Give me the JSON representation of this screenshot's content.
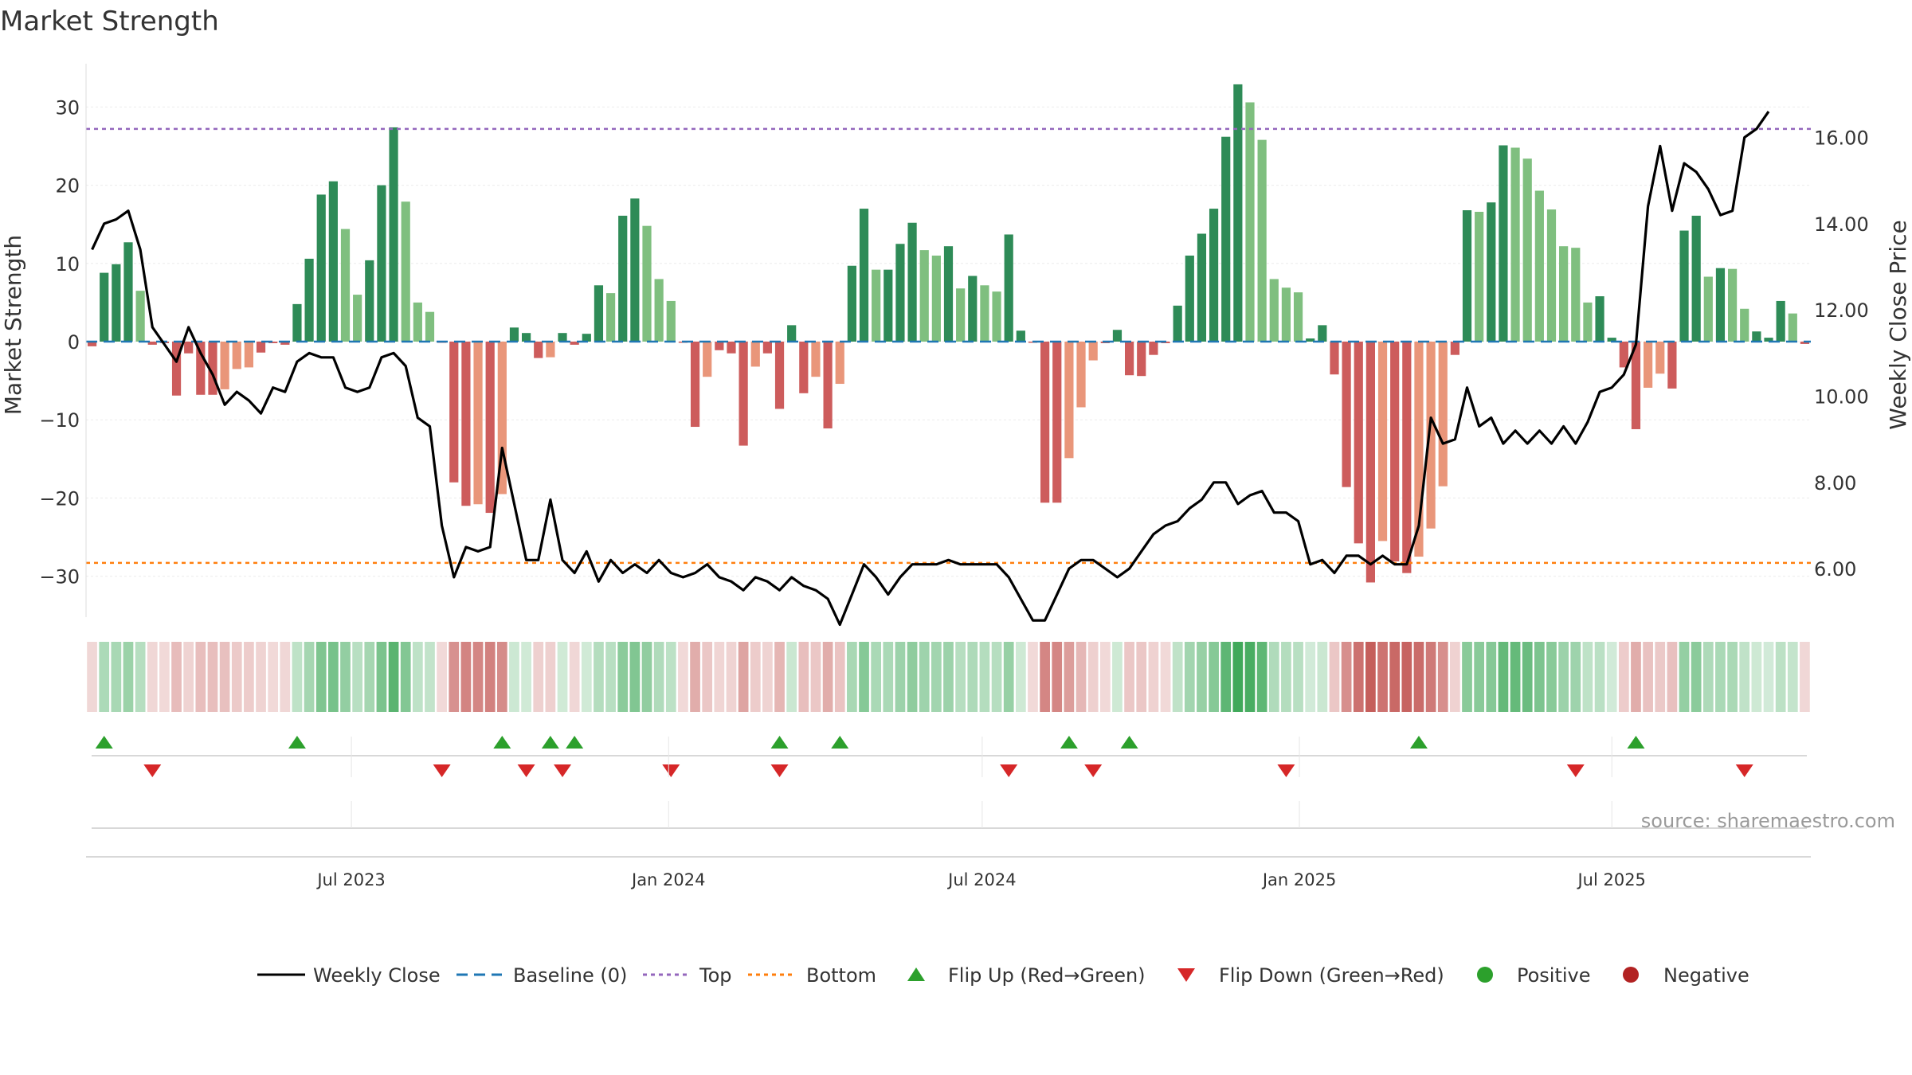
{
  "chart_data": {
    "type": "bar",
    "title": "Market Strength",
    "ylabel_left": "Market Strength",
    "ylabel_right": "Weekly Close Price",
    "left_ticks": [
      "30",
      "20",
      "10",
      "0",
      "−10",
      "−20",
      "−30"
    ],
    "right_ticks": [
      "16.00",
      "14.00",
      "12.00",
      "10.00",
      "8.00",
      "6.00"
    ],
    "ylim_left": [
      -35.5,
      35
    ],
    "ylim_right": [
      4.2,
      17.6
    ],
    "grid": true,
    "x_tick_labels": [
      "Jul 2023",
      "Jan 2024",
      "Jul 2024",
      "Jan 2025",
      "Jul 2025"
    ],
    "x_tick_indices": [
      22,
      48.3,
      74.3,
      100.6,
      126.5
    ],
    "reference_lines": {
      "top": 27.2,
      "bottom": -28.3,
      "baseline": 0
    },
    "strength": [
      -0.6,
      8.8,
      9.9,
      12.7,
      6.5,
      -0.4,
      -0.2,
      -6.9,
      -1.5,
      -6.8,
      -6.8,
      -6.1,
      -3.5,
      -3.3,
      -1.4,
      -0.2,
      -0.4,
      4.8,
      10.6,
      18.8,
      20.5,
      14.4,
      6.0,
      10.4,
      20.0,
      27.4,
      17.9,
      5.0,
      3.8,
      -0.1,
      -18.0,
      -21.0,
      -20.8,
      -21.9,
      -19.5,
      1.8,
      1.1,
      -2.1,
      -2.0,
      1.1,
      -0.4,
      1.0,
      7.2,
      6.2,
      16.1,
      18.3,
      14.8,
      8.0,
      5.2,
      -0.1,
      -10.9,
      -4.5,
      -1.1,
      -1.5,
      -13.3,
      -3.2,
      -1.5,
      -8.6,
      2.1,
      -6.6,
      -4.5,
      -11.1,
      -5.4,
      9.7,
      17.0,
      9.2,
      9.2,
      12.5,
      15.2,
      11.7,
      11.0,
      12.2,
      6.8,
      8.4,
      7.2,
      6.4,
      13.7,
      1.4,
      -0.1,
      -20.6,
      -20.6,
      -14.9,
      -8.4,
      -2.4,
      -0.2,
      1.5,
      -4.3,
      -4.4,
      -1.7,
      -0.2,
      4.6,
      11.0,
      13.8,
      17.0,
      26.2,
      32.9,
      30.6,
      25.8,
      8.0,
      6.9,
      6.3,
      0.4,
      2.1,
      -4.2,
      -18.6,
      -25.8,
      -30.8,
      -25.5,
      -28.1,
      -29.6,
      -27.5,
      -23.9,
      -18.5,
      -1.7,
      16.8,
      16.6,
      17.8,
      25.1,
      24.8,
      23.4,
      19.3,
      16.9,
      12.2,
      12.0,
      5.0,
      5.8,
      0.5,
      -3.3,
      -11.2,
      -5.9,
      -4.1,
      -6.0,
      14.2,
      16.1,
      8.3,
      9.4,
      9.3,
      4.2,
      1.3,
      0.5,
      5.2,
      3.6,
      -0.3
    ],
    "weekly_close": [
      13.4,
      14.0,
      14.1,
      14.3,
      13.4,
      11.6,
      11.2,
      10.8,
      11.6,
      11.0,
      10.5,
      9.8,
      10.1,
      9.9,
      9.6,
      10.2,
      10.1,
      10.8,
      11.0,
      10.9,
      10.9,
      10.2,
      10.1,
      10.2,
      10.9,
      11.0,
      10.7,
      9.5,
      9.3,
      7.0,
      5.8,
      6.5,
      6.4,
      6.5,
      8.8,
      7.5,
      6.2,
      6.2,
      7.6,
      6.2,
      5.9,
      6.4,
      5.7,
      6.2,
      5.9,
      6.1,
      5.9,
      6.2,
      5.9,
      5.8,
      5.9,
      6.1,
      5.8,
      5.7,
      5.5,
      5.8,
      5.7,
      5.5,
      5.8,
      5.6,
      5.5,
      5.3,
      4.7,
      5.4,
      6.1,
      5.8,
      5.4,
      5.8,
      6.1,
      6.1,
      6.1,
      6.2,
      6.1,
      6.1,
      6.1,
      6.1,
      5.8,
      5.3,
      4.8,
      4.8,
      5.4,
      6.0,
      6.2,
      6.2,
      6.0,
      5.8,
      6.0,
      6.4,
      6.8,
      7.0,
      7.1,
      7.4,
      7.6,
      8.0,
      8.0,
      7.5,
      7.7,
      7.8,
      7.3,
      7.3,
      7.1,
      6.1,
      6.2,
      5.9,
      6.3,
      6.3,
      6.1,
      6.3,
      6.1,
      6.1,
      7.0,
      9.5,
      8.9,
      9.0,
      10.2,
      9.3,
      9.5,
      8.9,
      9.2,
      8.9,
      9.2,
      8.9,
      9.3,
      8.9,
      9.4,
      10.1,
      10.2,
      10.5,
      11.2,
      14.4,
      15.8,
      14.3,
      15.4,
      15.2,
      14.8,
      14.2,
      14.3,
      16.0,
      16.2,
      16.6
    ],
    "flip_up_indices": [
      1,
      17,
      34,
      38,
      40,
      57,
      62,
      81,
      86,
      110,
      128
    ],
    "flip_down_indices": [
      5,
      29,
      36,
      39,
      48,
      57,
      76,
      83,
      99,
      123,
      137
    ],
    "colors": {
      "strong_positive": "#2e8b57",
      "weak_positive": "#7fbf7f",
      "strong_negative": "#cd5c5c",
      "weak_negative": "#e9967a",
      "price_line": "#000000",
      "baseline": "#1f77b4",
      "top_line": "#9467bd",
      "bottom_line": "#ff7f0e",
      "flip_up": "#2ca02c",
      "flip_down": "#d62728",
      "positive_dot": "#2ca02c",
      "negative_dot": "#b22222"
    }
  },
  "legend": {
    "weekly_close": "Weekly Close",
    "baseline": "Baseline (0)",
    "top": "Top",
    "bottom": "Bottom",
    "flip_up": "Flip Up (Red→Green)",
    "flip_down": "Flip Down (Green→Red)",
    "positive": "Positive",
    "negative": "Negative"
  },
  "source": "source: sharemaestro.com"
}
